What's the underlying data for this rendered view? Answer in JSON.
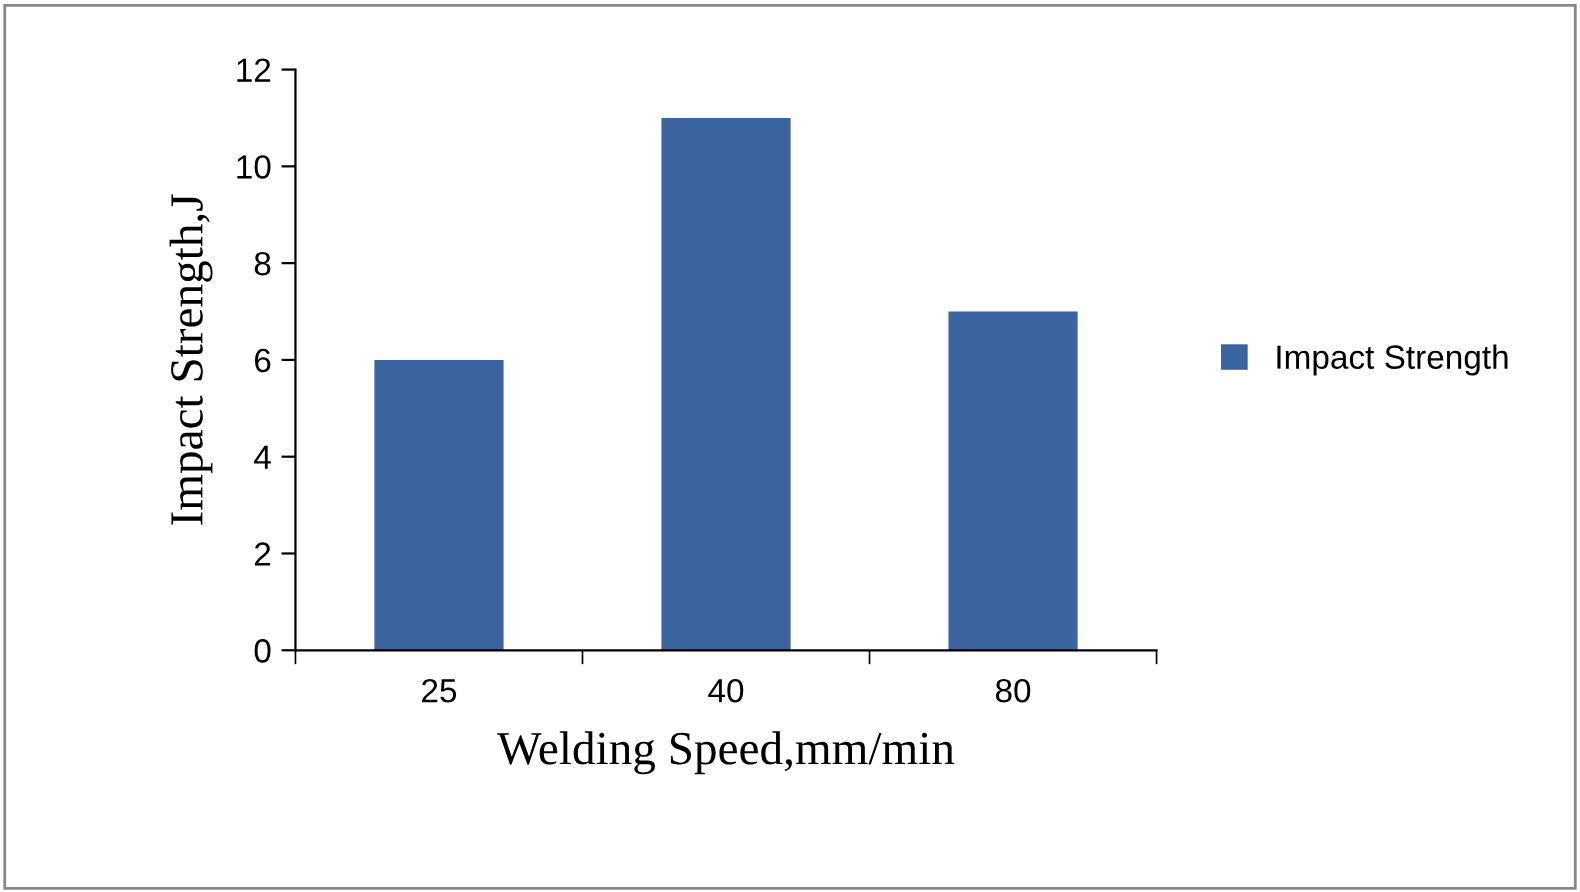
{
  "chart_data": {
    "type": "bar",
    "xlabel": "Welding Speed,mm/min",
    "ylabel": "Impact Strength,J",
    "categories": [
      "25",
      "40",
      "80"
    ],
    "series": [
      {
        "name": "Impact Strength",
        "color": "#3b64a0",
        "values": [
          6,
          11,
          7
        ]
      }
    ],
    "ylim": [
      0,
      12
    ],
    "yticks": [
      0,
      2,
      4,
      6,
      8,
      10,
      12
    ],
    "grid": false,
    "legend": "right"
  }
}
